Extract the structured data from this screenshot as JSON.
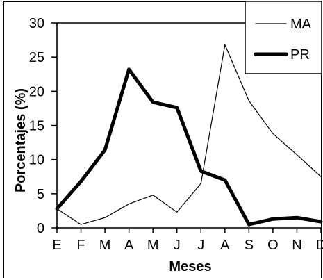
{
  "chart_data": {
    "type": "line",
    "categories": [
      "E",
      "F",
      "M",
      "A",
      "M",
      "J",
      "J",
      "A",
      "S",
      "O",
      "N",
      "D"
    ],
    "series": [
      {
        "name": "MA",
        "values": [
          2.8,
          0.5,
          1.5,
          3.5,
          4.8,
          2.3,
          6.5,
          26.8,
          18.6,
          13.8,
          10.7,
          7.5
        ],
        "color": "#000000",
        "line_weight": "thin"
      },
      {
        "name": "PR",
        "values": [
          2.8,
          6.8,
          11.4,
          23.2,
          18.4,
          17.6,
          8.3,
          7.0,
          0.5,
          1.3,
          1.5,
          0.9
        ],
        "color": "#000000",
        "line_weight": "thick"
      }
    ],
    "title": "",
    "xlabel": "Meses",
    "ylabel": "Porcentajes (%)",
    "ylim": [
      0,
      30
    ],
    "yticks": [
      0,
      5,
      10,
      15,
      20,
      25,
      30
    ],
    "grid": false,
    "legend_position": "top-right"
  }
}
